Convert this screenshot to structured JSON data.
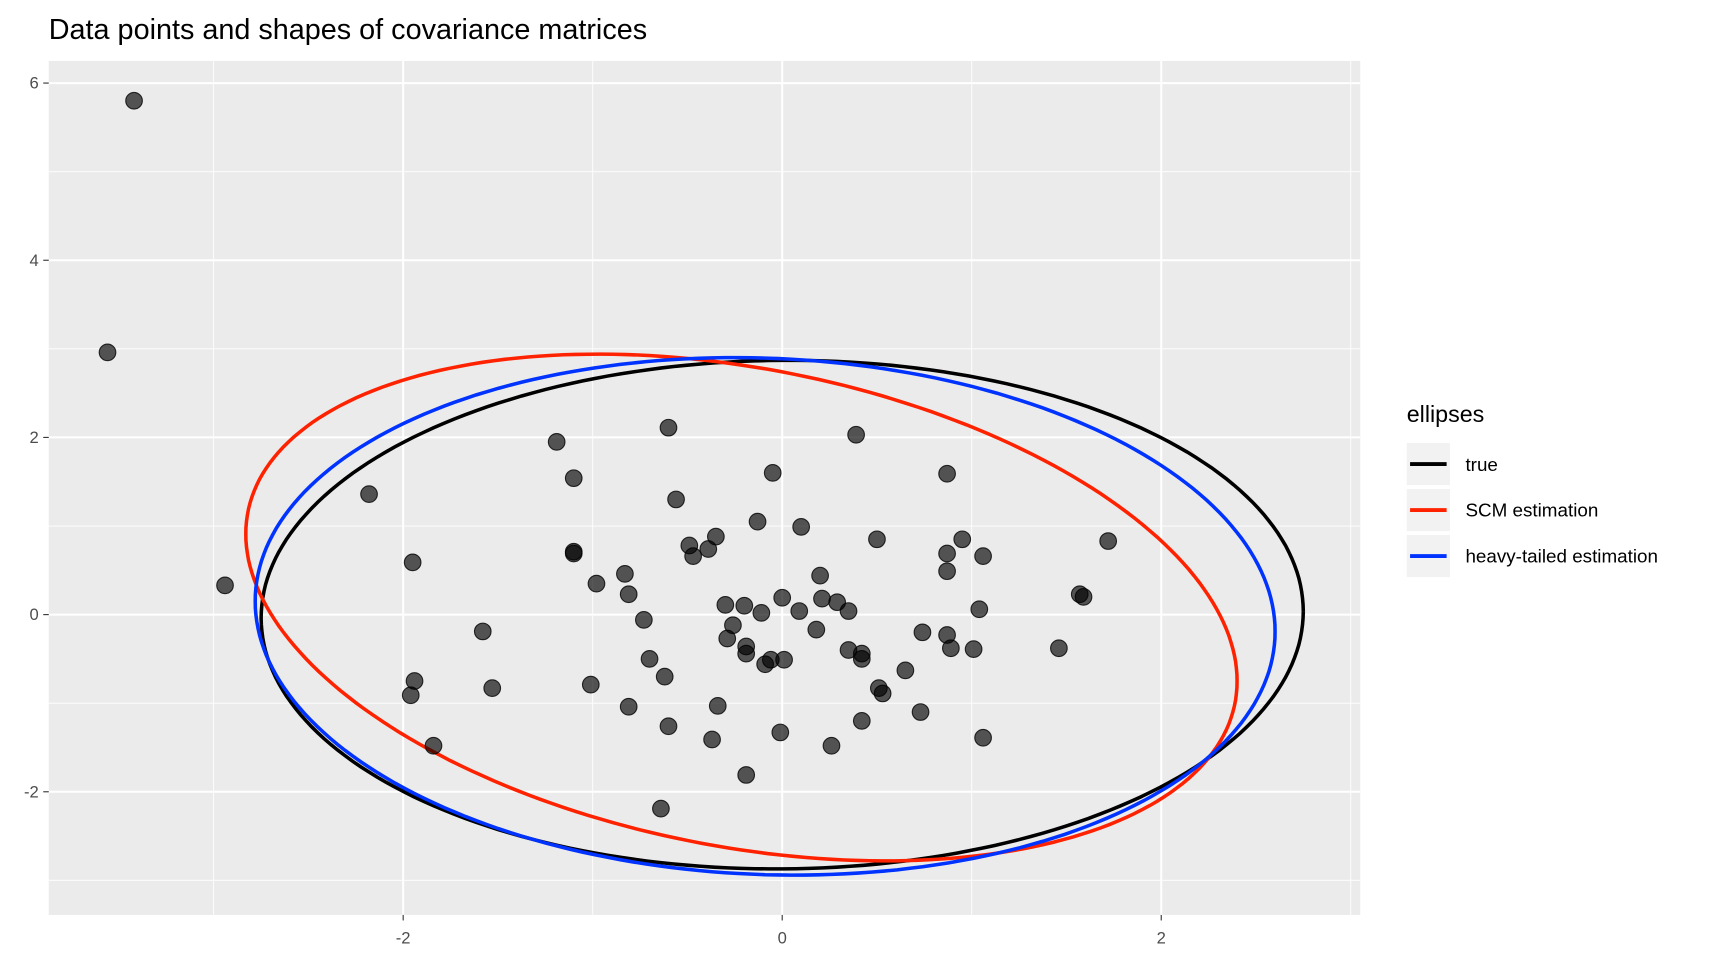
{
  "chart_data": {
    "type": "scatter",
    "title": "Data points and shapes of covariance matrices",
    "xlabel": "",
    "ylabel": "",
    "xlim": [
      -3.87,
      3.05
    ],
    "ylim": [
      -3.39,
      6.25
    ],
    "x_major_ticks": [
      -2,
      0,
      2
    ],
    "x_minor_ticks": [
      -3,
      -1,
      1,
      3
    ],
    "y_major_ticks": [
      -2,
      0,
      2,
      4,
      6
    ],
    "y_minor_ticks": [
      -3,
      -1,
      1,
      3,
      5
    ],
    "x_tick_labels": [
      "-2",
      "0",
      "2"
    ],
    "y_tick_labels": [
      "-2",
      "0",
      "2",
      "4",
      "6"
    ],
    "grid": true,
    "legend": {
      "title": "ellipses",
      "placement": "right",
      "entries": [
        {
          "label": "true",
          "color": "#000000"
        },
        {
          "label": "SCM estimation",
          "color": "#ff2200"
        },
        {
          "label": "heavy-tailed estimation",
          "color": "#0033ff"
        }
      ]
    },
    "points": [
      [
        -3.42,
        5.8
      ],
      [
        -3.56,
        2.96
      ],
      [
        -2.94,
        0.33
      ],
      [
        -2.18,
        1.36
      ],
      [
        -1.95,
        0.59
      ],
      [
        -1.94,
        -0.75
      ],
      [
        -1.96,
        -0.91
      ],
      [
        -1.84,
        -1.48
      ],
      [
        -1.58,
        -0.19
      ],
      [
        -1.53,
        -0.83
      ],
      [
        -1.19,
        1.95
      ],
      [
        -1.1,
        1.54
      ],
      [
        -1.1,
        0.69
      ],
      [
        -1.1,
        0.71
      ],
      [
        -1.01,
        -0.79
      ],
      [
        -0.98,
        0.35
      ],
      [
        -0.83,
        0.46
      ],
      [
        -0.81,
        0.23
      ],
      [
        -0.81,
        -1.04
      ],
      [
        -0.73,
        -0.06
      ],
      [
        -0.7,
        -0.5
      ],
      [
        -0.64,
        -2.19
      ],
      [
        -0.62,
        -0.7
      ],
      [
        -0.6,
        2.11
      ],
      [
        -0.6,
        -1.26
      ],
      [
        -0.56,
        1.3
      ],
      [
        -0.49,
        0.78
      ],
      [
        -0.47,
        0.66
      ],
      [
        -0.39,
        0.74
      ],
      [
        -0.37,
        -1.41
      ],
      [
        -0.35,
        0.88
      ],
      [
        -0.34,
        -1.03
      ],
      [
        -0.3,
        0.11
      ],
      [
        -0.29,
        -0.27
      ],
      [
        -0.26,
        -0.12
      ],
      [
        -0.2,
        0.1
      ],
      [
        -0.19,
        -1.81
      ],
      [
        -0.19,
        -0.36
      ],
      [
        -0.19,
        -0.44
      ],
      [
        -0.13,
        1.05
      ],
      [
        -0.11,
        0.02
      ],
      [
        -0.09,
        -0.56
      ],
      [
        -0.06,
        -0.51
      ],
      [
        -0.05,
        1.6
      ],
      [
        -0.01,
        -1.33
      ],
      [
        0.0,
        0.19
      ],
      [
        0.01,
        -0.51
      ],
      [
        0.09,
        0.04
      ],
      [
        0.1,
        0.99
      ],
      [
        0.18,
        -0.17
      ],
      [
        0.2,
        0.44
      ],
      [
        0.21,
        0.18
      ],
      [
        0.26,
        -1.48
      ],
      [
        0.29,
        0.14
      ],
      [
        0.35,
        0.04
      ],
      [
        0.35,
        -0.4
      ],
      [
        0.39,
        2.03
      ],
      [
        0.42,
        -0.44
      ],
      [
        0.42,
        -0.5
      ],
      [
        0.42,
        -1.2
      ],
      [
        0.5,
        0.85
      ],
      [
        0.51,
        -0.83
      ],
      [
        0.53,
        -0.89
      ],
      [
        0.65,
        -0.63
      ],
      [
        0.73,
        -1.1
      ],
      [
        0.74,
        -0.2
      ],
      [
        0.87,
        1.59
      ],
      [
        0.87,
        0.69
      ],
      [
        0.87,
        0.49
      ],
      [
        0.87,
        -0.23
      ],
      [
        0.89,
        -0.38
      ],
      [
        0.95,
        0.85
      ],
      [
        1.01,
        -0.39
      ],
      [
        1.04,
        0.06
      ],
      [
        1.06,
        -1.39
      ],
      [
        1.06,
        0.66
      ],
      [
        1.46,
        -0.38
      ],
      [
        1.57,
        0.23
      ],
      [
        1.59,
        0.2
      ],
      [
        1.72,
        0.83
      ]
    ],
    "ellipses": [
      {
        "name": "true",
        "color": "#000000",
        "center": [
          0.0,
          0.0
        ],
        "shape": [
          [
            7.56,
            0.1
          ],
          [
            0.1,
            8.24
          ]
        ]
      },
      {
        "name": "SCM estimation",
        "color": "#ff2200",
        "center": [
          -0.215,
          0.08
        ],
        "shape": [
          [
            6.84,
            -2.17
          ],
          [
            -2.17,
            8.18
          ]
        ]
      },
      {
        "name": "heavy-tailed estimation",
        "color": "#0033ff",
        "center": [
          -0.09,
          -0.02
        ],
        "shape": [
          [
            7.24,
            -0.46
          ],
          [
            -0.46,
            8.53
          ]
        ]
      }
    ]
  }
}
